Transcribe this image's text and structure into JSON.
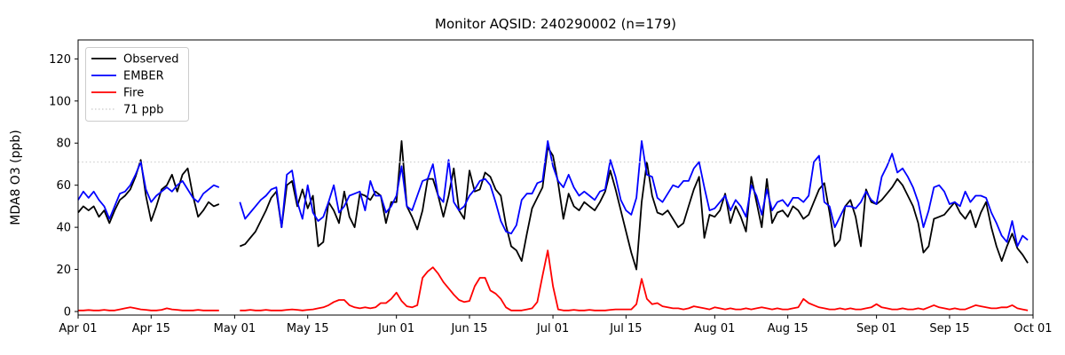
{
  "chart_data": {
    "type": "line",
    "title": "Monitor AQSID: 240290002 (n=179)",
    "ylabel": "MDA8 O3 (ppb)",
    "n_points": 179,
    "x_start": "Apr 01",
    "x_end": "Oct 01",
    "x_tick_labels": [
      "Apr 01",
      "Apr 15",
      "May 01",
      "May 15",
      "Jun 01",
      "Jun 15",
      "Jul 01",
      "Jul 15",
      "Aug 01",
      "Aug 15",
      "Sep 01",
      "Sep 15",
      "Oct 01"
    ],
    "x_tick_days": [
      0,
      14,
      30,
      44,
      61,
      75,
      91,
      105,
      122,
      136,
      153,
      167,
      183
    ],
    "y_ticks": [
      0,
      20,
      40,
      60,
      80,
      100,
      120
    ],
    "ylim": [
      -2,
      129
    ],
    "xlim_days": [
      0,
      183
    ],
    "grid": false,
    "legend_position": "upper-left",
    "threshold_line": {
      "label": "71 ppb",
      "value": 71,
      "color": "#d3d3d3",
      "style": "dotted"
    },
    "legend_entries": [
      {
        "label": "Observed",
        "color": "#000000",
        "dotted": false
      },
      {
        "label": "EMBER",
        "color": "#0000ff",
        "dotted": false
      },
      {
        "label": "Fire",
        "color": "#ff0000",
        "dotted": false
      },
      {
        "label": "71 ppb",
        "color": "#d3d3d3",
        "dotted": true
      }
    ],
    "series": [
      {
        "name": "Observed",
        "color": "#000000",
        "start_date": "Apr 01",
        "cadence": "daily",
        "values": [
          47,
          50,
          48,
          50,
          45,
          48,
          42,
          48,
          53,
          55,
          58,
          64,
          72,
          55,
          43,
          50,
          58,
          60,
          65,
          57,
          65,
          68,
          55,
          45,
          48,
          52,
          50,
          51,
          null,
          null,
          null,
          31,
          32,
          35,
          38,
          43,
          48,
          54,
          57,
          40,
          60,
          62,
          50,
          58,
          49,
          55,
          31,
          33,
          52,
          48,
          42,
          57,
          45,
          40,
          56,
          55,
          53,
          57,
          55,
          42,
          52,
          52,
          81,
          50,
          45,
          39,
          48,
          63,
          63,
          55,
          45,
          55,
          68,
          48,
          44,
          67,
          57,
          58,
          66,
          64,
          58,
          55,
          41,
          31,
          29,
          24,
          37,
          49,
          54,
          59,
          78,
          74,
          61,
          44,
          56,
          50,
          48,
          52,
          50,
          48,
          52,
          57,
          67,
          58,
          48,
          38,
          28,
          20,
          52,
          71,
          55,
          47,
          46,
          48,
          44,
          40,
          42,
          50,
          58,
          64,
          35,
          46,
          45,
          48,
          56,
          42,
          50,
          45,
          38,
          64,
          52,
          40,
          63,
          42,
          47,
          48,
          45,
          50,
          48,
          44,
          46,
          52,
          58,
          61,
          47,
          31,
          34,
          50,
          53,
          45,
          31,
          58,
          52,
          51,
          53,
          56,
          59,
          63,
          60,
          55,
          50,
          42,
          28,
          31,
          44,
          45,
          46,
          49,
          52,
          47,
          44,
          48,
          40,
          47,
          52,
          40,
          31,
          24,
          31,
          37,
          30,
          27,
          23
        ]
      },
      {
        "name": "EMBER",
        "color": "#0000ff",
        "start_date": "Apr 01",
        "cadence": "daily",
        "values": [
          53,
          57,
          54,
          57,
          53,
          50,
          44,
          50,
          56,
          57,
          60,
          65,
          71,
          58,
          52,
          55,
          57,
          59,
          57,
          60,
          62,
          58,
          54,
          52,
          56,
          58,
          60,
          59,
          null,
          null,
          null,
          52,
          44,
          47,
          50,
          53,
          55,
          58,
          59,
          40,
          65,
          67,
          52,
          44,
          60,
          47,
          43,
          45,
          52,
          60,
          47,
          50,
          55,
          56,
          57,
          48,
          62,
          55,
          55,
          47,
          50,
          55,
          69,
          50,
          48,
          55,
          62,
          63,
          70,
          55,
          52,
          72,
          52,
          48,
          50,
          55,
          58,
          62,
          63,
          60,
          52,
          43,
          38,
          37,
          41,
          53,
          56,
          56,
          61,
          62,
          81,
          69,
          62,
          59,
          65,
          59,
          55,
          57,
          55,
          53,
          57,
          58,
          72,
          64,
          53,
          48,
          46,
          54,
          81,
          65,
          64,
          54,
          52,
          56,
          60,
          59,
          62,
          62,
          68,
          71,
          59,
          48,
          49,
          52,
          55,
          48,
          53,
          50,
          45,
          60,
          55,
          46,
          58,
          48,
          52,
          53,
          50,
          54,
          54,
          52,
          55,
          71,
          74,
          52,
          50,
          40,
          45,
          50,
          50,
          49,
          52,
          57,
          53,
          51,
          64,
          69,
          75,
          66,
          68,
          64,
          59,
          52,
          40,
          48,
          59,
          60,
          57,
          51,
          52,
          50,
          57,
          52,
          55,
          55,
          54,
          47,
          42,
          36,
          33,
          43,
          31,
          36,
          34
        ]
      },
      {
        "name": "Fire",
        "color": "#ff0000",
        "start_date": "Apr 01",
        "cadence": "daily",
        "values": [
          0.5,
          0.5,
          0.7,
          0.5,
          0.5,
          0.8,
          0.5,
          0.5,
          1,
          1.5,
          2,
          1.5,
          1,
          0.8,
          0.5,
          0.5,
          0.8,
          1.5,
          1,
          0.8,
          0.5,
          0.5,
          0.5,
          0.8,
          0.5,
          0.5,
          0.5,
          0.5,
          null,
          null,
          null,
          0.5,
          0.5,
          0.8,
          0.5,
          0.5,
          0.8,
          0.5,
          0.5,
          0.5,
          0.8,
          1,
          0.8,
          0.5,
          0.8,
          1,
          1.5,
          2,
          3,
          4.5,
          5.5,
          5.5,
          3,
          2,
          1.5,
          2,
          1.5,
          2,
          4,
          4,
          6,
          9,
          5,
          2.5,
          2,
          3,
          16,
          19,
          21,
          18,
          14,
          11,
          8,
          5.5,
          4.5,
          5,
          12,
          16,
          16,
          10,
          8.5,
          6,
          2,
          0.5,
          0.5,
          0.5,
          1,
          1.5,
          4.5,
          17,
          29,
          12,
          1,
          0.5,
          0.5,
          0.8,
          0.5,
          0.5,
          0.8,
          0.5,
          0.5,
          0.5,
          0.8,
          1,
          1,
          1,
          1,
          3.5,
          15.5,
          6,
          3.5,
          4,
          2.5,
          2,
          1.5,
          1.5,
          1,
          1.5,
          2.5,
          2,
          1.5,
          1,
          2,
          1.5,
          1,
          1.5,
          1,
          1,
          1.5,
          1,
          1.5,
          2,
          1.5,
          1,
          1.5,
          1,
          1,
          1.5,
          2,
          6,
          4,
          3,
          2,
          1.5,
          1,
          1,
          1.5,
          1,
          1.5,
          1,
          1,
          1.5,
          2,
          3.5,
          2,
          1.5,
          1,
          1,
          1.5,
          1,
          1,
          1.5,
          1,
          2,
          3,
          2,
          1.5,
          1,
          1.5,
          1,
          1,
          2,
          3,
          2.5,
          2,
          1.5,
          1.5,
          2,
          2,
          3,
          1.5,
          1,
          0.5
        ]
      }
    ]
  }
}
